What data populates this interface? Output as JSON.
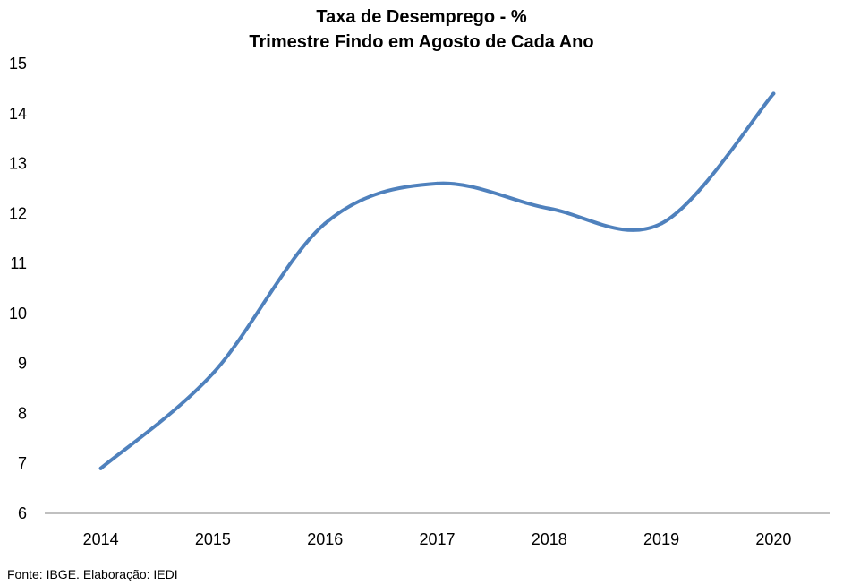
{
  "chart_data": {
    "type": "line",
    "title": "Taxa de Desemprego - %",
    "subtitle": "Trimestre Findo em Agosto de Cada Ano",
    "xlabel": "",
    "ylabel": "",
    "categories": [
      "2014",
      "2015",
      "2016",
      "2017",
      "2018",
      "2019",
      "2020"
    ],
    "series": [
      {
        "values": [
          6.9,
          8.8,
          11.8,
          12.6,
          12.1,
          11.8,
          14.4
        ],
        "color": "#4f81bd"
      }
    ],
    "ylim": [
      6,
      15
    ],
    "yticks": [
      6,
      7,
      8,
      9,
      10,
      11,
      12,
      13,
      14,
      15
    ],
    "grid": false,
    "legend": "none",
    "smooth": true
  },
  "source": "Fonte: IBGE. Elaboração: IEDI"
}
